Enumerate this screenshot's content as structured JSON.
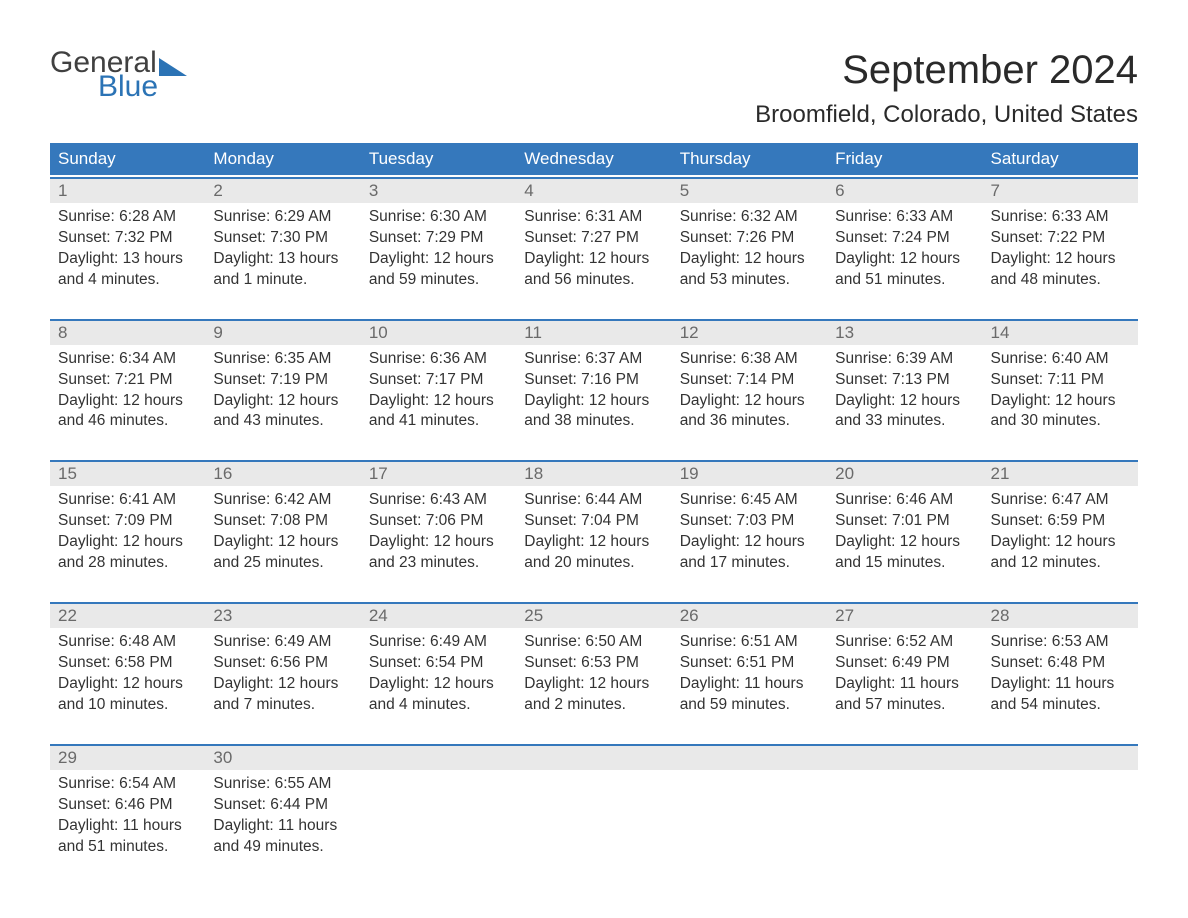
{
  "logo": {
    "line1": "General",
    "line2": "Blue"
  },
  "title": "September 2024",
  "location": "Broomfield, Colorado, United States",
  "colors": {
    "header_bg": "#3578bc",
    "header_text": "#ffffff",
    "daynum_bg": "#e9e9e9",
    "daynum_text": "#6a6a6a",
    "body_text": "#333333",
    "logo_dark": "#404040",
    "logo_blue": "#2b73b5",
    "week_border": "#3578bc",
    "page_bg": "#ffffff"
  },
  "typography": {
    "title_fontsize": 40,
    "location_fontsize": 24,
    "header_fontsize": 17,
    "daynum_fontsize": 17,
    "cell_fontsize": 15.5,
    "font_family": "Arial"
  },
  "day_names": [
    "Sunday",
    "Monday",
    "Tuesday",
    "Wednesday",
    "Thursday",
    "Friday",
    "Saturday"
  ],
  "weeks": [
    [
      {
        "n": "1",
        "sr": "Sunrise: 6:28 AM",
        "ss": "Sunset: 7:32 PM",
        "d1": "Daylight: 13 hours",
        "d2": "and 4 minutes."
      },
      {
        "n": "2",
        "sr": "Sunrise: 6:29 AM",
        "ss": "Sunset: 7:30 PM",
        "d1": "Daylight: 13 hours",
        "d2": "and 1 minute."
      },
      {
        "n": "3",
        "sr": "Sunrise: 6:30 AM",
        "ss": "Sunset: 7:29 PM",
        "d1": "Daylight: 12 hours",
        "d2": "and 59 minutes."
      },
      {
        "n": "4",
        "sr": "Sunrise: 6:31 AM",
        "ss": "Sunset: 7:27 PM",
        "d1": "Daylight: 12 hours",
        "d2": "and 56 minutes."
      },
      {
        "n": "5",
        "sr": "Sunrise: 6:32 AM",
        "ss": "Sunset: 7:26 PM",
        "d1": "Daylight: 12 hours",
        "d2": "and 53 minutes."
      },
      {
        "n": "6",
        "sr": "Sunrise: 6:33 AM",
        "ss": "Sunset: 7:24 PM",
        "d1": "Daylight: 12 hours",
        "d2": "and 51 minutes."
      },
      {
        "n": "7",
        "sr": "Sunrise: 6:33 AM",
        "ss": "Sunset: 7:22 PM",
        "d1": "Daylight: 12 hours",
        "d2": "and 48 minutes."
      }
    ],
    [
      {
        "n": "8",
        "sr": "Sunrise: 6:34 AM",
        "ss": "Sunset: 7:21 PM",
        "d1": "Daylight: 12 hours",
        "d2": "and 46 minutes."
      },
      {
        "n": "9",
        "sr": "Sunrise: 6:35 AM",
        "ss": "Sunset: 7:19 PM",
        "d1": "Daylight: 12 hours",
        "d2": "and 43 minutes."
      },
      {
        "n": "10",
        "sr": "Sunrise: 6:36 AM",
        "ss": "Sunset: 7:17 PM",
        "d1": "Daylight: 12 hours",
        "d2": "and 41 minutes."
      },
      {
        "n": "11",
        "sr": "Sunrise: 6:37 AM",
        "ss": "Sunset: 7:16 PM",
        "d1": "Daylight: 12 hours",
        "d2": "and 38 minutes."
      },
      {
        "n": "12",
        "sr": "Sunrise: 6:38 AM",
        "ss": "Sunset: 7:14 PM",
        "d1": "Daylight: 12 hours",
        "d2": "and 36 minutes."
      },
      {
        "n": "13",
        "sr": "Sunrise: 6:39 AM",
        "ss": "Sunset: 7:13 PM",
        "d1": "Daylight: 12 hours",
        "d2": "and 33 minutes."
      },
      {
        "n": "14",
        "sr": "Sunrise: 6:40 AM",
        "ss": "Sunset: 7:11 PM",
        "d1": "Daylight: 12 hours",
        "d2": "and 30 minutes."
      }
    ],
    [
      {
        "n": "15",
        "sr": "Sunrise: 6:41 AM",
        "ss": "Sunset: 7:09 PM",
        "d1": "Daylight: 12 hours",
        "d2": "and 28 minutes."
      },
      {
        "n": "16",
        "sr": "Sunrise: 6:42 AM",
        "ss": "Sunset: 7:08 PM",
        "d1": "Daylight: 12 hours",
        "d2": "and 25 minutes."
      },
      {
        "n": "17",
        "sr": "Sunrise: 6:43 AM",
        "ss": "Sunset: 7:06 PM",
        "d1": "Daylight: 12 hours",
        "d2": "and 23 minutes."
      },
      {
        "n": "18",
        "sr": "Sunrise: 6:44 AM",
        "ss": "Sunset: 7:04 PM",
        "d1": "Daylight: 12 hours",
        "d2": "and 20 minutes."
      },
      {
        "n": "19",
        "sr": "Sunrise: 6:45 AM",
        "ss": "Sunset: 7:03 PM",
        "d1": "Daylight: 12 hours",
        "d2": "and 17 minutes."
      },
      {
        "n": "20",
        "sr": "Sunrise: 6:46 AM",
        "ss": "Sunset: 7:01 PM",
        "d1": "Daylight: 12 hours",
        "d2": "and 15 minutes."
      },
      {
        "n": "21",
        "sr": "Sunrise: 6:47 AM",
        "ss": "Sunset: 6:59 PM",
        "d1": "Daylight: 12 hours",
        "d2": "and 12 minutes."
      }
    ],
    [
      {
        "n": "22",
        "sr": "Sunrise: 6:48 AM",
        "ss": "Sunset: 6:58 PM",
        "d1": "Daylight: 12 hours",
        "d2": "and 10 minutes."
      },
      {
        "n": "23",
        "sr": "Sunrise: 6:49 AM",
        "ss": "Sunset: 6:56 PM",
        "d1": "Daylight: 12 hours",
        "d2": "and 7 minutes."
      },
      {
        "n": "24",
        "sr": "Sunrise: 6:49 AM",
        "ss": "Sunset: 6:54 PM",
        "d1": "Daylight: 12 hours",
        "d2": "and 4 minutes."
      },
      {
        "n": "25",
        "sr": "Sunrise: 6:50 AM",
        "ss": "Sunset: 6:53 PM",
        "d1": "Daylight: 12 hours",
        "d2": "and 2 minutes."
      },
      {
        "n": "26",
        "sr": "Sunrise: 6:51 AM",
        "ss": "Sunset: 6:51 PM",
        "d1": "Daylight: 11 hours",
        "d2": "and 59 minutes."
      },
      {
        "n": "27",
        "sr": "Sunrise: 6:52 AM",
        "ss": "Sunset: 6:49 PM",
        "d1": "Daylight: 11 hours",
        "d2": "and 57 minutes."
      },
      {
        "n": "28",
        "sr": "Sunrise: 6:53 AM",
        "ss": "Sunset: 6:48 PM",
        "d1": "Daylight: 11 hours",
        "d2": "and 54 minutes."
      }
    ],
    [
      {
        "n": "29",
        "sr": "Sunrise: 6:54 AM",
        "ss": "Sunset: 6:46 PM",
        "d1": "Daylight: 11 hours",
        "d2": "and 51 minutes."
      },
      {
        "n": "30",
        "sr": "Sunrise: 6:55 AM",
        "ss": "Sunset: 6:44 PM",
        "d1": "Daylight: 11 hours",
        "d2": "and 49 minutes."
      },
      null,
      null,
      null,
      null,
      null
    ]
  ]
}
